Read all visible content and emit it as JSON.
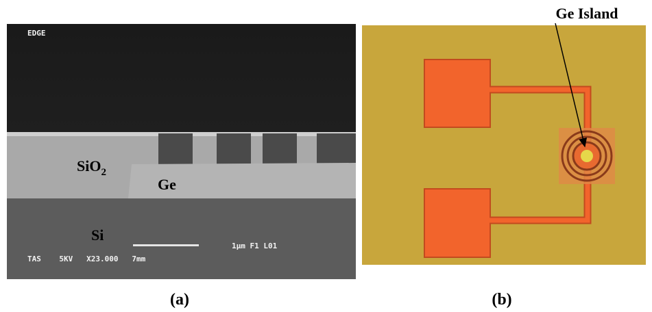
{
  "panels": [
    {
      "label": "(a)",
      "overlay": {
        "top": "EDGE",
        "scale": "1µm  F1  L01",
        "info": "TAS    5KV   X23.000   7mm"
      },
      "annotations": {
        "oxide": {
          "text": "SiO",
          "subscript": "2"
        },
        "island": "Ge",
        "substrate": "Si"
      }
    },
    {
      "label": "(b)",
      "callout": "Ge Island"
    }
  ]
}
